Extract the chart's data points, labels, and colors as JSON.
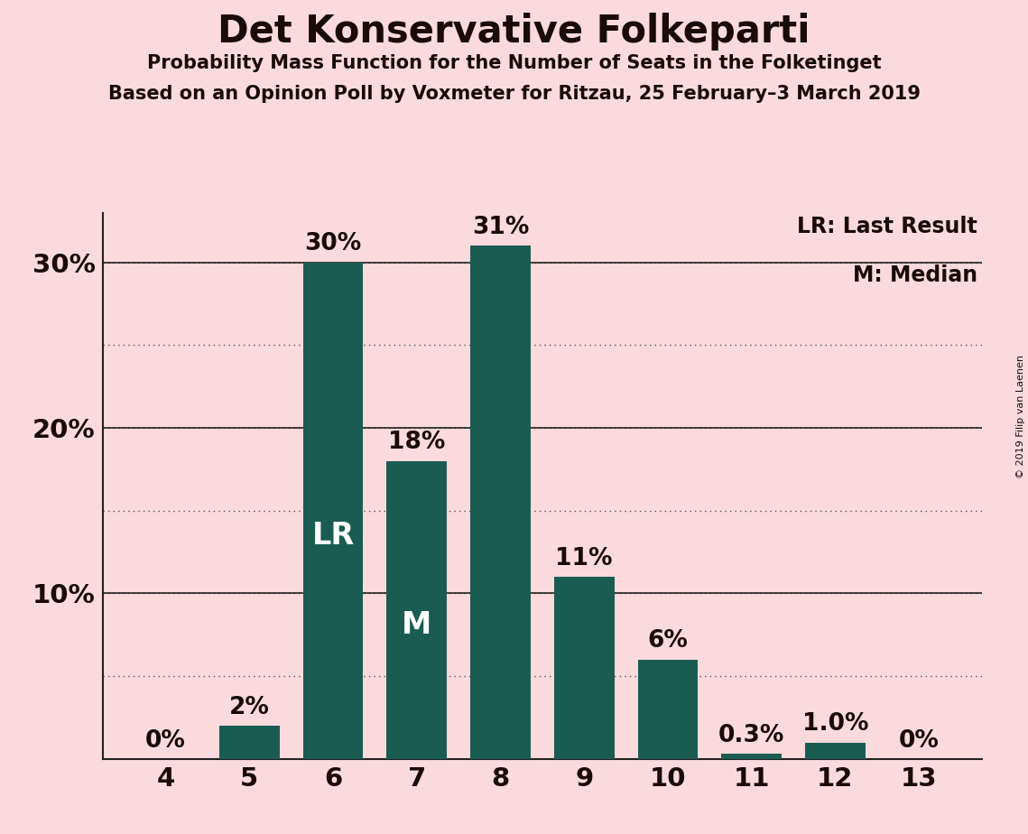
{
  "title": "Det Konservative Folkeparti",
  "subtitle1": "Probability Mass Function for the Number of Seats in the Folketinget",
  "subtitle2": "Based on an Opinion Poll by Voxmeter for Ritzau, 25 February–3 March 2019",
  "copyright": "© 2019 Filip van Laenen",
  "categories": [
    4,
    5,
    6,
    7,
    8,
    9,
    10,
    11,
    12,
    13
  ],
  "values": [
    0,
    2,
    30,
    18,
    31,
    11,
    6,
    0.3,
    1.0,
    0
  ],
  "bar_color": "#1a5c52",
  "bg_color": "#fadadd",
  "text_color": "#1a0a0a",
  "bar_labels": [
    "0%",
    "2%",
    "30%",
    "18%",
    "31%",
    "11%",
    "6%",
    "0.3%",
    "1.0%",
    "0%"
  ],
  "lr_bar": 6,
  "median_bar": 7,
  "lr_label": "LR",
  "median_label": "M",
  "legend_lr": "LR: Last Result",
  "legend_m": "M: Median",
  "ylim": [
    0,
    33
  ],
  "grid_y": [
    5,
    10,
    15,
    20,
    25,
    30
  ],
  "title_fontsize": 30,
  "subtitle_fontsize": 15,
  "tick_fontsize": 21,
  "bar_label_fontsize": 19,
  "inbar_label_fontsize": 24,
  "legend_fontsize": 17,
  "copyright_fontsize": 8
}
